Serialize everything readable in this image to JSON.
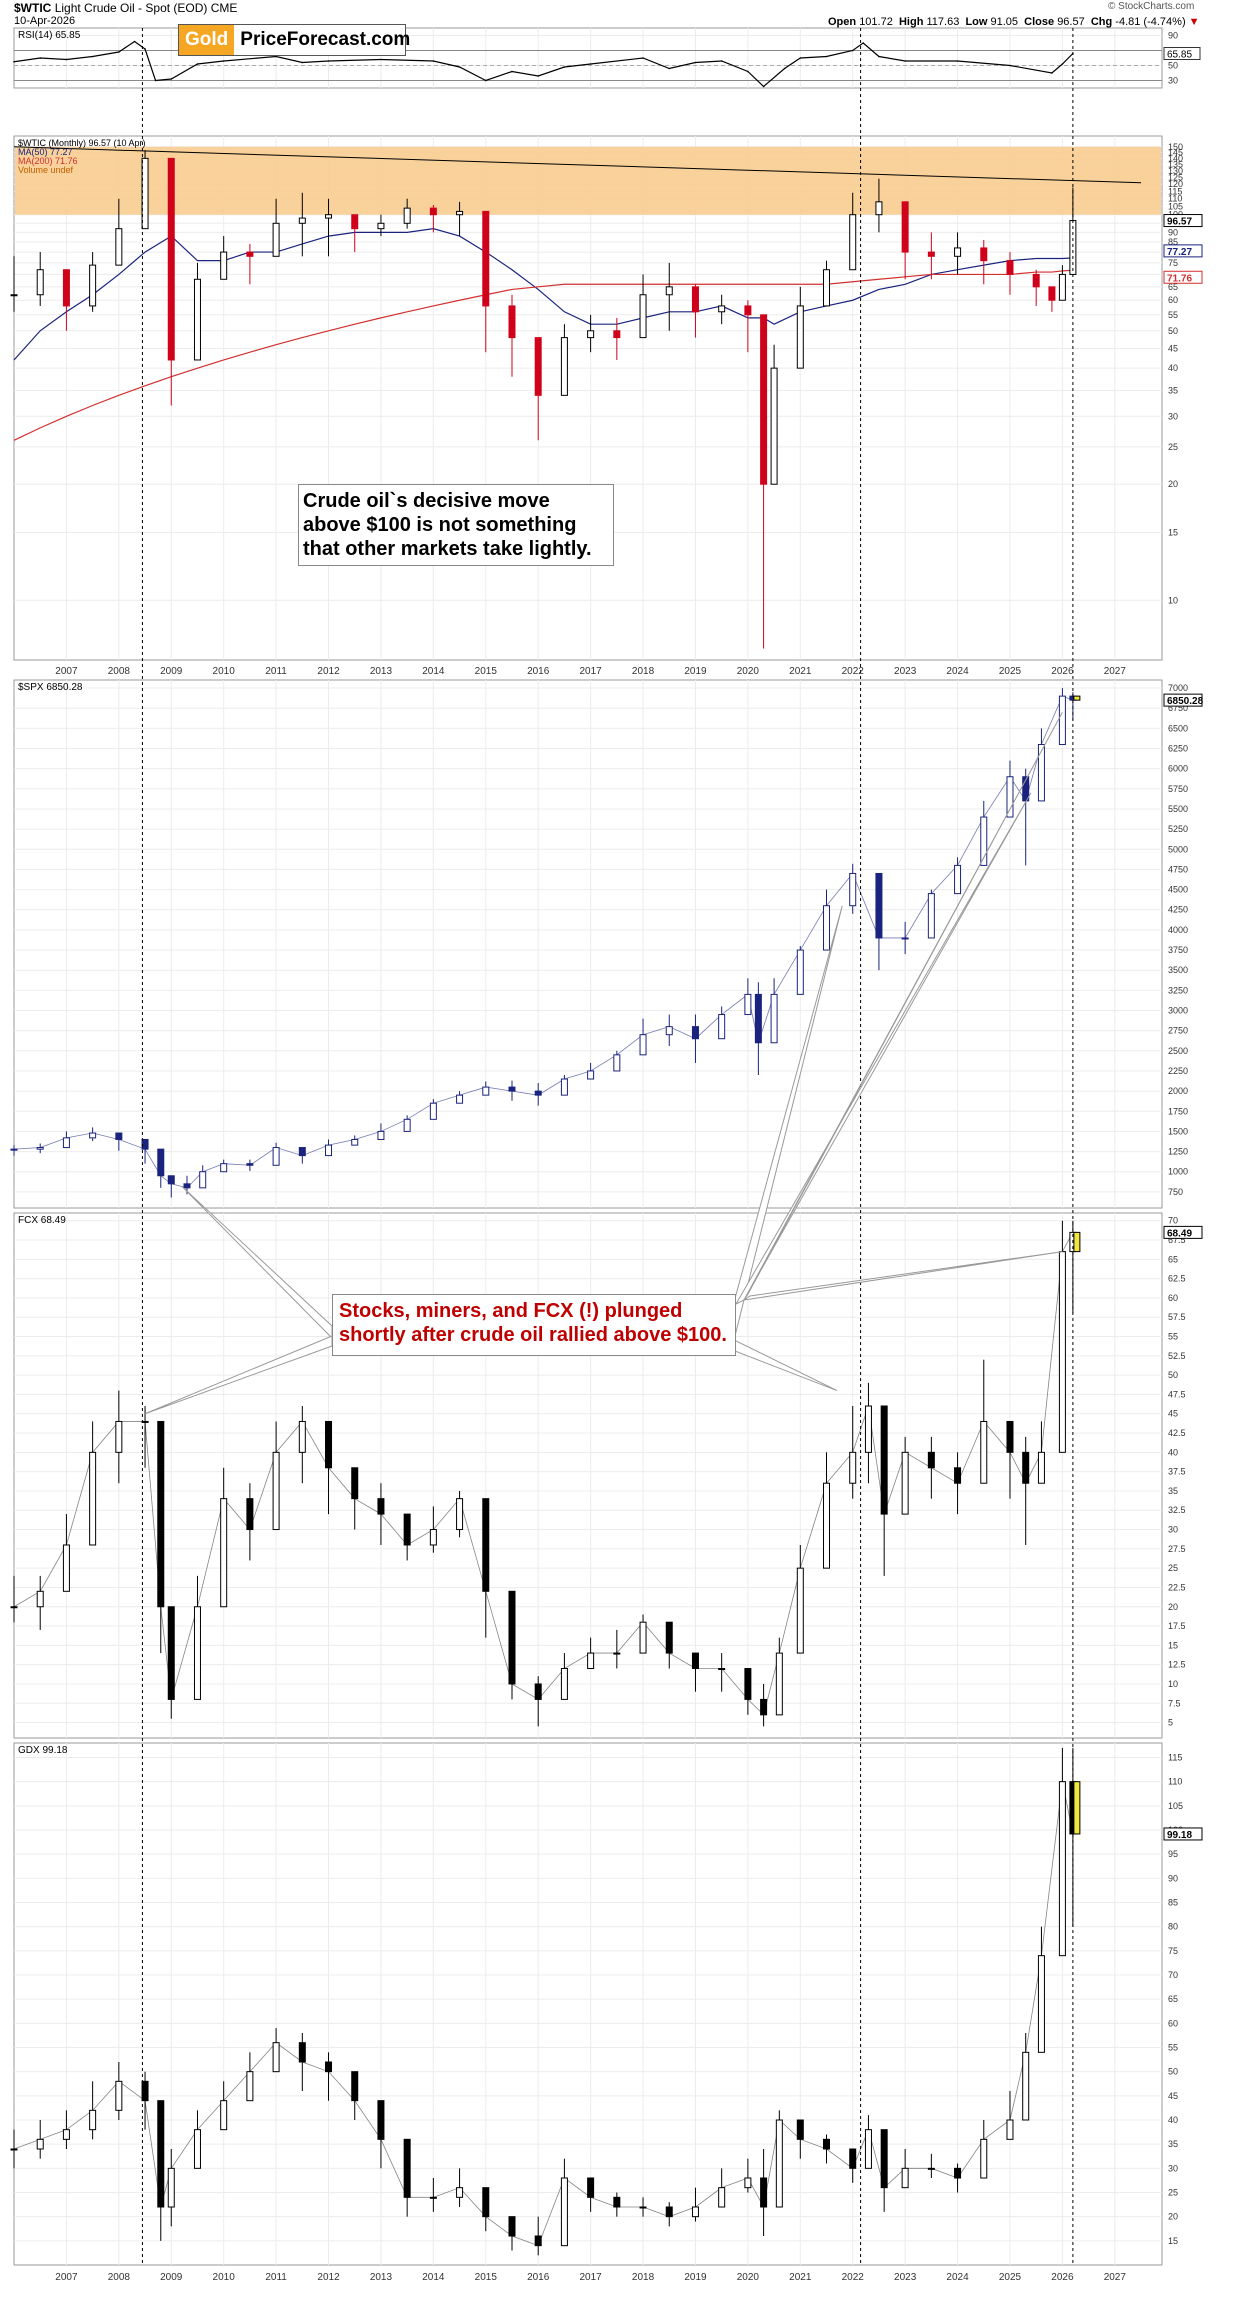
{
  "header": {
    "symbol": "$WTIC",
    "title": "Light Crude Oil - Spot (EOD)",
    "exchange": "CME",
    "date": "10-Apr-2026",
    "open_label": "Open",
    "open": "101.72",
    "high_label": "High",
    "high": "117.63",
    "low_label": "Low",
    "low": "91.05",
    "close_label": "Close",
    "close": "96.57",
    "chg_label": "Chg",
    "chg": "-4.81 (-4.74%)",
    "source": "© StockCharts.com"
  },
  "logo": {
    "gold": "Gold",
    "rest": "PriceForecast.com"
  },
  "annotations": {
    "oil_note": "Crude oil`s decisive move above $100 is not something that other markets take lightly.",
    "stocks_note": "Stocks, miners, and FCX (!) plunged shortly after crude oil rallied above $100."
  },
  "colors": {
    "band": "#f8cc8f",
    "ma50": "#1a237e",
    "ma200": "#d32f2f",
    "up_candle": "#ffffff",
    "down_candle": "#000000",
    "wtic_down": "#d0021b",
    "spx": "#1a237e",
    "highlight": "#f1e640"
  },
  "chart_data": [
    {
      "id": "rsi",
      "type": "line",
      "legend": "RSI(14) 65.85",
      "last_value_label": "65.85",
      "ylim": [
        20,
        100
      ],
      "yticks": [
        30,
        50,
        70,
        90
      ],
      "x": [
        2006.0,
        2006.5,
        2007.0,
        2007.5,
        2008.0,
        2008.3,
        2008.5,
        2008.7,
        2009.0,
        2009.5,
        2010.0,
        2011.0,
        2011.5,
        2012.0,
        2013.0,
        2014.0,
        2014.5,
        2015.0,
        2015.5,
        2016.0,
        2016.5,
        2017.0,
        2018.0,
        2018.5,
        2019.0,
        2019.5,
        2020.0,
        2020.3,
        2020.7,
        2021.0,
        2021.5,
        2022.0,
        2022.2,
        2022.5,
        2023.0,
        2024.0,
        2025.0,
        2025.8,
        2026.0,
        2026.2
      ],
      "values": [
        55,
        60,
        58,
        62,
        68,
        82,
        72,
        30,
        32,
        52,
        56,
        62,
        54,
        56,
        58,
        56,
        48,
        30,
        42,
        36,
        48,
        52,
        60,
        46,
        54,
        56,
        42,
        22,
        46,
        60,
        62,
        70,
        80,
        62,
        56,
        56,
        50,
        40,
        52,
        66
      ]
    },
    {
      "id": "wtic",
      "type": "candlestick",
      "legend": [
        "$WTIC (Monthly) 96.57 (10 Apr)",
        "MA(50) 77.27",
        "MA(200) 71.76",
        "Volume undef"
      ],
      "last_value_label": "96.57",
      "ma50_label": "77.27",
      "ma200_label": "71.76",
      "scale": "log",
      "ylim": [
        7,
        160
      ],
      "yticks": [
        10,
        15,
        20,
        25,
        30,
        35,
        40,
        45,
        50,
        55,
        60,
        65,
        70,
        75,
        80,
        85,
        90,
        95,
        100,
        105,
        110,
        115,
        120,
        125,
        130,
        135,
        140,
        145,
        150
      ],
      "band": [
        100,
        150
      ],
      "trendline": [
        [
          2006.0,
          150
        ],
        [
          2027.5,
          121
        ]
      ],
      "x": [
        2006.0,
        2006.5,
        2007.0,
        2007.5,
        2008.0,
        2008.5,
        2009.0,
        2009.5,
        2010.0,
        2010.5,
        2011.0,
        2011.5,
        2012.0,
        2012.5,
        2013.0,
        2013.5,
        2014.0,
        2014.5,
        2015.0,
        2015.5,
        2016.0,
        2016.5,
        2017.0,
        2017.5,
        2018.0,
        2018.5,
        2019.0,
        2019.5,
        2020.0,
        2020.3,
        2020.5,
        2021.0,
        2021.5,
        2022.0,
        2022.5,
        2023.0,
        2023.5,
        2024.0,
        2024.5,
        2025.0,
        2025.5,
        2025.8,
        2026.0,
        2026.2
      ],
      "close": [
        62,
        72,
        58,
        74,
        92,
        140,
        42,
        68,
        80,
        78,
        95,
        98,
        100,
        92,
        95,
        104,
        100,
        102,
        58,
        48,
        34,
        48,
        50,
        48,
        62,
        65,
        56,
        58,
        55,
        20,
        40,
        58,
        72,
        100,
        108,
        80,
        78,
        82,
        76,
        70,
        65,
        60,
        70,
        96.57
      ],
      "low": [
        56,
        58,
        50,
        56,
        80,
        100,
        32,
        58,
        72,
        66,
        82,
        78,
        78,
        80,
        88,
        92,
        90,
        88,
        44,
        38,
        26,
        42,
        44,
        42,
        56,
        50,
        48,
        52,
        44,
        7.5,
        32,
        50,
        62,
        78,
        90,
        68,
        68,
        70,
        66,
        62,
        58,
        56,
        60,
        70
      ],
      "high": [
        78,
        80,
        70,
        80,
        110,
        147,
        58,
        75,
        88,
        84,
        110,
        114,
        110,
        100,
        100,
        110,
        106,
        108,
        66,
        62,
        48,
        52,
        55,
        54,
        70,
        75,
        66,
        62,
        60,
        42,
        46,
        65,
        76,
        114,
        124,
        86,
        90,
        90,
        86,
        80,
        72,
        64,
        74,
        117.63
      ],
      "ma50": [
        42,
        50,
        56,
        62,
        70,
        80,
        88,
        76,
        76,
        80,
        80,
        84,
        88,
        90,
        90,
        90,
        92,
        88,
        80,
        72,
        64,
        56,
        52,
        52,
        54,
        56,
        56,
        58,
        54,
        54,
        52,
        56,
        58,
        60,
        64,
        66,
        70,
        72,
        74,
        76,
        77,
        77,
        77,
        77.27
      ],
      "ma200": [
        26,
        28,
        30,
        32,
        34,
        36,
        38,
        40,
        42,
        44,
        46,
        48,
        50,
        52,
        54,
        56,
        58,
        60,
        62,
        64,
        65,
        66,
        66,
        66,
        66,
        66,
        66,
        66,
        66,
        66,
        66,
        66,
        66,
        67,
        68,
        69,
        70,
        70,
        70,
        70,
        71,
        71,
        71.5,
        71.76
      ]
    },
    {
      "id": "spx",
      "type": "candlestick",
      "legend": "$SPX 6850.28",
      "last_value_label": "6850.28",
      "scale": "linear",
      "ylim": [
        550,
        7100
      ],
      "yticks": [
        750,
        1000,
        1250,
        1500,
        1750,
        2000,
        2250,
        2500,
        2750,
        3000,
        3250,
        3500,
        3750,
        4000,
        4250,
        4500,
        4750,
        5000,
        5250,
        5500,
        5750,
        6000,
        6250,
        6500,
        6750,
        7000
      ],
      "x": [
        2006.0,
        2006.5,
        2007.0,
        2007.5,
        2008.0,
        2008.5,
        2008.8,
        2009.0,
        2009.3,
        2009.6,
        2010.0,
        2010.5,
        2011.0,
        2011.5,
        2012.0,
        2012.5,
        2013.0,
        2013.5,
        2014.0,
        2014.5,
        2015.0,
        2015.5,
        2016.0,
        2016.5,
        2017.0,
        2017.5,
        2018.0,
        2018.5,
        2019.0,
        2019.5,
        2020.0,
        2020.2,
        2020.5,
        2021.0,
        2021.5,
        2022.0,
        2022.5,
        2023.0,
        2023.5,
        2024.0,
        2024.5,
        2025.0,
        2025.3,
        2025.6,
        2026.0,
        2026.2
      ],
      "close": [
        1280,
        1300,
        1420,
        1480,
        1400,
        1280,
        950,
        850,
        800,
        1000,
        1100,
        1080,
        1300,
        1200,
        1330,
        1400,
        1500,
        1650,
        1850,
        1950,
        2050,
        2000,
        1950,
        2150,
        2250,
        2450,
        2700,
        2800,
        2650,
        2950,
        3200,
        2600,
        3200,
        3750,
        4300,
        4700,
        3900,
        3900,
        4450,
        4800,
        5400,
        5900,
        5600,
        6300,
        6900,
        6850.28
      ],
      "low": [
        1200,
        1230,
        1360,
        1380,
        1260,
        1100,
        800,
        680,
        720,
        900,
        1040,
        1010,
        1180,
        1100,
        1260,
        1330,
        1430,
        1560,
        1760,
        1880,
        1960,
        1880,
        1820,
        2060,
        2180,
        2380,
        2560,
        2560,
        2350,
        2820,
        3000,
        2200,
        3000,
        3600,
        4100,
        4200,
        3500,
        3700,
        4200,
        4600,
        5200,
        5600,
        4800,
        6100,
        6500,
        6600
      ],
      "high": [
        1330,
        1350,
        1500,
        1550,
        1450,
        1300,
        1000,
        900,
        950,
        1080,
        1150,
        1150,
        1360,
        1300,
        1400,
        1450,
        1600,
        1700,
        1900,
        2000,
        2120,
        2130,
        2100,
        2200,
        2350,
        2500,
        2900,
        2950,
        2950,
        3050,
        3400,
        3350,
        3400,
        3800,
        4500,
        4820,
        4300,
        4100,
        4500,
        4900,
        5600,
        6100,
        6000,
        6500,
        7000,
        6950
      ]
    },
    {
      "id": "fcx",
      "type": "candlestick",
      "legend": "FCX 68.49",
      "last_value_label": "68.49",
      "scale": "linear",
      "ylim": [
        3,
        71
      ],
      "yticks": [
        5,
        7.5,
        10,
        12.5,
        15,
        17.5,
        20,
        22.5,
        25,
        27.5,
        30,
        32.5,
        35,
        37.5,
        40,
        42.5,
        45,
        47.5,
        50,
        52.5,
        55,
        57.5,
        60,
        62.5,
        65,
        67.5,
        70
      ],
      "x": [
        2006.0,
        2006.5,
        2007.0,
        2007.5,
        2008.0,
        2008.5,
        2008.8,
        2009.0,
        2009.5,
        2010.0,
        2010.5,
        2011.0,
        2011.5,
        2012.0,
        2012.5,
        2013.0,
        2013.5,
        2014.0,
        2014.5,
        2015.0,
        2015.5,
        2016.0,
        2016.5,
        2017.0,
        2017.5,
        2018.0,
        2018.5,
        2019.0,
        2019.5,
        2020.0,
        2020.3,
        2020.6,
        2021.0,
        2021.5,
        2022.0,
        2022.3,
        2022.6,
        2023.0,
        2023.5,
        2024.0,
        2024.5,
        2025.0,
        2025.3,
        2025.6,
        2026.0,
        2026.2
      ],
      "close": [
        20,
        22,
        28,
        40,
        44,
        44,
        20,
        8,
        20,
        34,
        30,
        40,
        44,
        38,
        34,
        32,
        28,
        30,
        34,
        22,
        10,
        8,
        12,
        14,
        14,
        18,
        14,
        12,
        12,
        8,
        6,
        14,
        25,
        36,
        40,
        46,
        32,
        40,
        38,
        36,
        44,
        40,
        36,
        40,
        66,
        68.49
      ],
      "low": [
        18,
        17,
        24,
        32,
        36,
        38,
        14,
        5.5,
        14,
        28,
        26,
        34,
        36,
        32,
        30,
        28,
        26,
        27,
        29,
        16,
        8,
        4.5,
        9,
        12,
        12,
        14,
        12,
        9,
        9,
        6,
        4.5,
        11,
        22,
        32,
        34,
        36,
        24,
        34,
        34,
        32,
        40,
        34,
        28,
        36,
        58,
        58
      ],
      "high": [
        24,
        24,
        32,
        44,
        48,
        46,
        40,
        12,
        24,
        38,
        36,
        44,
        46,
        40,
        38,
        36,
        32,
        33,
        35,
        28,
        14,
        11,
        14,
        16,
        17,
        19,
        17,
        14,
        14,
        12,
        10,
        16,
        28,
        40,
        46,
        49,
        36,
        42,
        42,
        40,
        52,
        44,
        42,
        44,
        70,
        70
      ]
    },
    {
      "id": "gdx",
      "type": "candlestick",
      "legend": "GDX 99.18",
      "last_value_label": "99.18",
      "scale": "linear",
      "ylim": [
        10,
        118
      ],
      "yticks": [
        15,
        20,
        25,
        30,
        35,
        40,
        45,
        50,
        55,
        60,
        65,
        70,
        75,
        80,
        85,
        90,
        95,
        100,
        105,
        110,
        115
      ],
      "x": [
        2006.0,
        2006.5,
        2007.0,
        2007.5,
        2008.0,
        2008.5,
        2008.8,
        2009.0,
        2009.5,
        2010.0,
        2010.5,
        2011.0,
        2011.5,
        2012.0,
        2012.5,
        2013.0,
        2013.5,
        2014.0,
        2014.5,
        2015.0,
        2015.5,
        2016.0,
        2016.5,
        2017.0,
        2017.5,
        2018.0,
        2018.5,
        2019.0,
        2019.5,
        2020.0,
        2020.3,
        2020.6,
        2021.0,
        2021.5,
        2022.0,
        2022.3,
        2022.6,
        2023.0,
        2023.5,
        2024.0,
        2024.5,
        2025.0,
        2025.3,
        2025.6,
        2026.0,
        2026.2
      ],
      "close": [
        34,
        36,
        38,
        42,
        48,
        44,
        22,
        30,
        38,
        44,
        50,
        56,
        52,
        50,
        44,
        36,
        24,
        24,
        26,
        20,
        16,
        14,
        28,
        24,
        22,
        22,
        20,
        22,
        26,
        28,
        22,
        40,
        36,
        34,
        30,
        38,
        26,
        30,
        30,
        28,
        36,
        40,
        54,
        74,
        110,
        99.18
      ],
      "low": [
        30,
        32,
        34,
        36,
        40,
        38,
        15,
        18,
        30,
        38,
        44,
        50,
        46,
        44,
        40,
        30,
        20,
        21,
        22,
        17,
        13,
        12,
        20,
        21,
        20,
        20,
        18,
        19,
        23,
        25,
        16,
        34,
        32,
        31,
        27,
        31,
        21,
        28,
        28,
        25,
        32,
        36,
        46,
        62,
        80,
        80
      ],
      "high": [
        38,
        40,
        42,
        48,
        52,
        50,
        44,
        34,
        42,
        48,
        54,
        59,
        58,
        54,
        48,
        40,
        28,
        28,
        30,
        24,
        20,
        20,
        32,
        26,
        25,
        24,
        23,
        26,
        30,
        32,
        34,
        42,
        38,
        37,
        34,
        41,
        32,
        34,
        33,
        31,
        40,
        46,
        58,
        80,
        117,
        117
      ]
    }
  ],
  "xaxis": {
    "years": [
      "2007",
      "2008",
      "2009",
      "2010",
      "2011",
      "2012",
      "2013",
      "2014",
      "2015",
      "2016",
      "2017",
      "2018",
      "2019",
      "2020",
      "2021",
      "2022",
      "2023",
      "2024",
      "2025",
      "2026",
      "2027"
    ],
    "xlim": [
      2006.0,
      2027.9
    ],
    "vlines": [
      2008.45,
      2022.15,
      2026.2
    ]
  }
}
